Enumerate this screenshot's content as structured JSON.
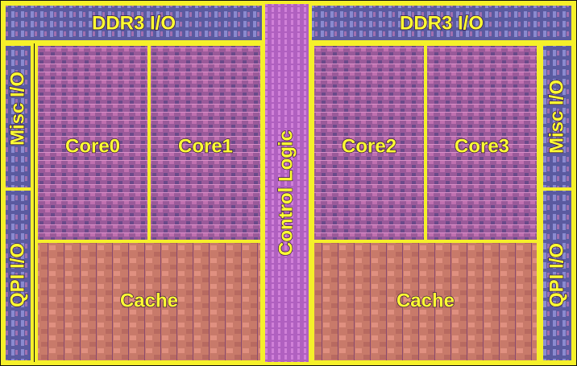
{
  "regions": [
    {
      "label": "DDR3 I/O"
    },
    {
      "label": "DDR3 I/O"
    },
    {
      "label": "Control Logic"
    },
    {
      "label": "Misc I/O"
    },
    {
      "label": "QPI I/O"
    },
    {
      "label": "Core0"
    },
    {
      "label": "Core1"
    },
    {
      "label": "Cache"
    },
    {
      "label": "Core2"
    },
    {
      "label": "Core3"
    },
    {
      "label": "Cache"
    },
    {
      "label": "Misc I/O"
    },
    {
      "label": "QPI I/O"
    }
  ]
}
